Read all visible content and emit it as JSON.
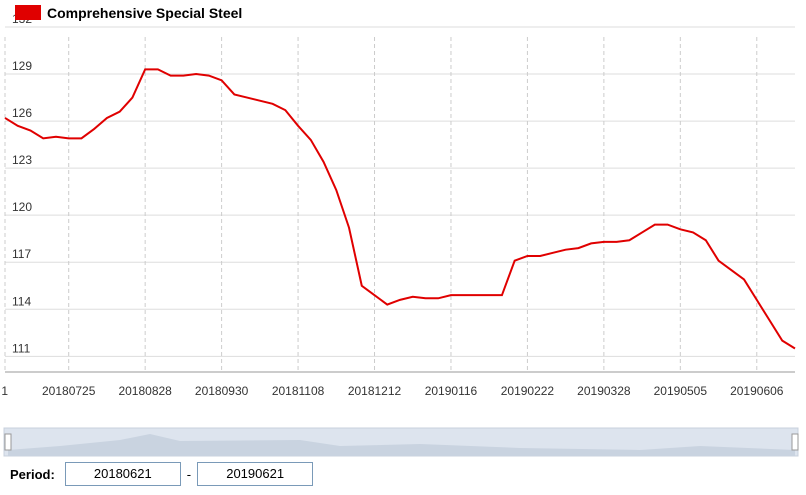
{
  "chart_data": {
    "type": "line",
    "categories": [
      "1",
      null,
      null,
      null,
      null,
      "20180725",
      null,
      null,
      null,
      null,
      null,
      "20180828",
      null,
      null,
      null,
      null,
      null,
      "20180930",
      null,
      null,
      null,
      null,
      null,
      "20181108",
      null,
      null,
      null,
      null,
      null,
      "20181212",
      null,
      null,
      null,
      null,
      null,
      "20190116",
      null,
      null,
      null,
      null,
      null,
      "20190222",
      null,
      null,
      null,
      null,
      null,
      "20190328",
      null,
      null,
      null,
      null,
      null,
      "20190505",
      null,
      null,
      null,
      null,
      null,
      "20190606",
      null,
      null,
      null
    ],
    "series": [
      {
        "name": "Comprehensive Special Steel",
        "color": "#e00000",
        "values": [
          126.2,
          125.7,
          125.4,
          124.9,
          125.0,
          124.9,
          124.9,
          125.5,
          126.2,
          126.6,
          127.5,
          129.3,
          129.3,
          128.9,
          128.9,
          129.0,
          128.9,
          128.6,
          127.7,
          127.5,
          127.3,
          127.1,
          126.7,
          125.7,
          124.8,
          123.4,
          121.6,
          119.2,
          115.5,
          114.9,
          114.3,
          114.6,
          114.8,
          114.7,
          114.7,
          114.9,
          114.9,
          114.9,
          114.9,
          114.9,
          117.1,
          117.4,
          117.4,
          117.6,
          117.8,
          117.9,
          118.2,
          118.3,
          118.3,
          118.4,
          118.9,
          119.4,
          119.4,
          119.1,
          118.9,
          118.4,
          117.1,
          116.5,
          115.9,
          114.6,
          113.3,
          112.0,
          111.5
        ]
      }
    ],
    "ylim": [
      110,
      132
    ],
    "yticks": [
      111,
      114,
      117,
      120,
      123,
      126,
      129,
      132
    ],
    "grid": true
  },
  "period": {
    "label": "Period:",
    "start": "20180621",
    "separator": "-",
    "end": "20190621"
  }
}
